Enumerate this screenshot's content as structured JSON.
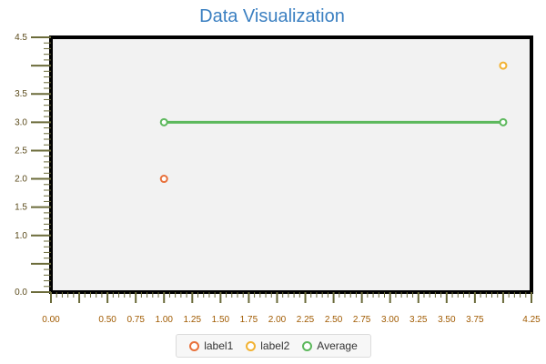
{
  "chart_data": {
    "type": "scatter",
    "title": "Data Visualization",
    "xlabel": "",
    "ylabel": "",
    "xlim": [
      0,
      4.25
    ],
    "ylim": [
      0,
      4.5
    ],
    "x_tick_labels": [
      "0.00",
      "0.50",
      "0.75",
      "1.00",
      "1.25",
      "1.50",
      "1.75",
      "2.00",
      "2.25",
      "2.50",
      "2.75",
      "3.00",
      "3.25",
      "3.50",
      "3.75",
      "4.25"
    ],
    "y_tick_labels": [
      "0.0",
      "1.0",
      "1.5",
      "2.0",
      "2.5",
      "3.0",
      "3.5",
      "4.5"
    ],
    "series": [
      {
        "name": "label1",
        "type": "scatter",
        "color": "#e8703a",
        "points": [
          {
            "x": 1.0,
            "y": 2.0
          }
        ]
      },
      {
        "name": "label2",
        "type": "scatter",
        "color": "#f2b233",
        "points": [
          {
            "x": 4.0,
            "y": 4.0
          }
        ]
      },
      {
        "name": "Average",
        "type": "line",
        "color": "#5cb85c",
        "points": [
          {
            "x": 1.0,
            "y": 3.0
          },
          {
            "x": 4.0,
            "y": 3.0
          }
        ]
      }
    ],
    "legend_position": "bottom-center",
    "grid": false,
    "axis_color": "#6b6b3a",
    "plot_background": "#f2f2f2"
  }
}
